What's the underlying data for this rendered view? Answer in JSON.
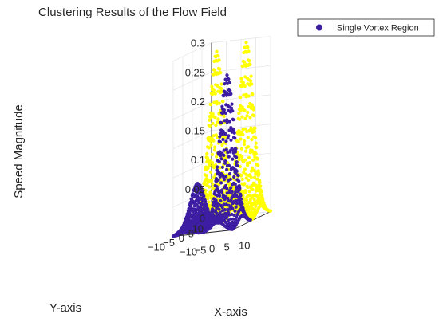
{
  "chart_data": {
    "type": "scatter",
    "projection": "3d",
    "title": "Clustering Results of the Flow Field",
    "xlabel": "X-axis",
    "ylabel": "Y-axis",
    "zlabel": "Speed Magnitude",
    "xlim": [
      -10,
      10
    ],
    "ylim": [
      -10,
      10
    ],
    "zlim": [
      0,
      0.3
    ],
    "xticks": [
      "−10",
      "−5",
      "0",
      "5",
      "10"
    ],
    "yticks": [
      "−10",
      "−5",
      "0",
      "5",
      "10"
    ],
    "zticks": [
      "0",
      "0.05",
      "0.1",
      "0.15",
      "0.2",
      "0.25",
      "0.3"
    ],
    "grid": true,
    "legend": {
      "position": "top-right",
      "entries": [
        "Single Vortex Region"
      ]
    },
    "series": [
      {
        "name": "Single Vortex Region",
        "color": "#3d1ea3"
      },
      {
        "color": "#ffff00"
      }
    ],
    "peaks": [
      {
        "x": -5,
        "y": 5,
        "z": 0.29,
        "color": "#ffff00"
      },
      {
        "x": 5,
        "y": 5,
        "z": 0.3,
        "color": "#ffff00"
      },
      {
        "x": 5,
        "y": -5,
        "z": 0.26,
        "color": "#3d1ea3"
      },
      {
        "x": -5,
        "y": -5,
        "z": 0.08,
        "color": "#3d1ea3"
      }
    ],
    "grid_points": 41
  }
}
